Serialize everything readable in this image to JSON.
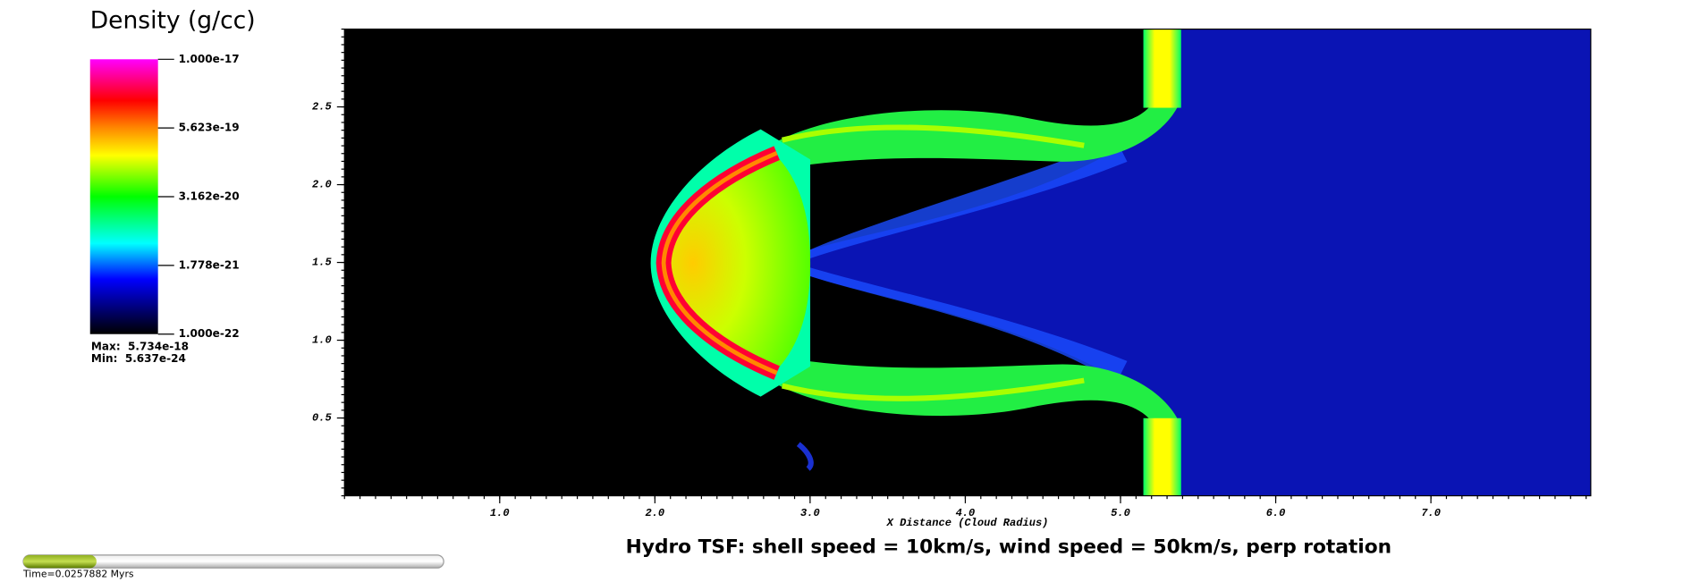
{
  "chart_data": {
    "type": "heatmap",
    "title": "Hydro TSF: shell speed = 10km/s, wind speed = 50km/s, perp rotation",
    "xlabel": "X Distance (Cloud Radius)",
    "xlim": [
      0,
      8.03
    ],
    "ylim": [
      0,
      3
    ],
    "xticks": [
      {
        "value": 1,
        "label": "1.0"
      },
      {
        "value": 2,
        "label": "2.0"
      },
      {
        "value": 3,
        "label": "3.0"
      },
      {
        "value": 4,
        "label": "4.0"
      },
      {
        "value": 5,
        "label": "5.0"
      },
      {
        "value": 6,
        "label": "6.0"
      },
      {
        "value": 7,
        "label": "7.0"
      }
    ],
    "yticks": [
      0.5,
      {
        "value": 1,
        "label": "1.0"
      },
      1.5,
      {
        "value": 2,
        "label": "2.0"
      },
      2.5
    ],
    "colorbar": {
      "title": "Density (g/cc)",
      "scale": "log",
      "lim": [
        1e-22,
        1e-17
      ],
      "ticks": [
        {
          "value": 1e-17,
          "label": "1.000e-17"
        },
        {
          "value": 5.623e-19,
          "label": "5.623e-19"
        },
        {
          "value": 3.162e-20,
          "label": "3.162e-20"
        },
        {
          "value": 1.778e-21,
          "label": "1.778e-21"
        },
        {
          "value": 1e-22,
          "label": "1.000e-22"
        }
      ],
      "max_text": "Max:  5.734e-18",
      "min_text": "Min:  5.637e-24"
    },
    "time": "Time=0.0257882 Myrs"
  }
}
